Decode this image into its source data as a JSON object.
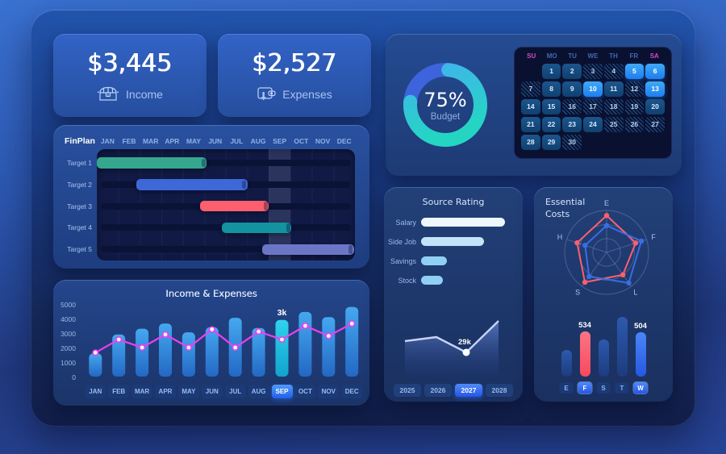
{
  "stats": {
    "income": {
      "value": "$3,445",
      "label": "Income"
    },
    "expenses": {
      "value": "$2,527",
      "label": "Expenses"
    }
  },
  "budget": {
    "percent": 75,
    "percent_label": "75%",
    "caption": "Budget",
    "ring_color_start": "#41b4ec",
    "ring_color_end": "#24d6c2",
    "ring_rest_color": "#3d64dd"
  },
  "calendar": {
    "day_headers": [
      "SU",
      "MO",
      "TU",
      "WE",
      "TH",
      "FR",
      "SA"
    ],
    "start_offset": 1,
    "num_days": 30,
    "active_days": [
      5,
      6,
      10,
      13
    ],
    "hatched_days": [
      3,
      4,
      7,
      12,
      16,
      17,
      18,
      19,
      25,
      26,
      27,
      30
    ]
  },
  "finplan": {
    "title": "FinPlan",
    "months": [
      "JAN",
      "FEB",
      "MAR",
      "APR",
      "MAY",
      "JUN",
      "JUL",
      "AUG",
      "SEP",
      "OCT",
      "NOV",
      "DEC"
    ],
    "highlight_month_index": 8,
    "rows": [
      {
        "label": "Target 1",
        "start": 0,
        "end": 5.1,
        "color": "#35a78e"
      },
      {
        "label": "Target 2",
        "start": 1.85,
        "end": 7.0,
        "color": "#3e68d8"
      },
      {
        "label": "Target 3",
        "start": 4.8,
        "end": 8.0,
        "color": "#fc5f6d"
      },
      {
        "label": "Target 4",
        "start": 5.8,
        "end": 9.05,
        "color": "#12939f"
      },
      {
        "label": "Target 5",
        "start": 7.7,
        "end": 11.95,
        "color": "#6b77c6"
      }
    ]
  },
  "income_expenses": {
    "title": "Income & Expenses",
    "y_ticks": [
      5000,
      4000,
      3000,
      2000,
      1000,
      0
    ],
    "ymax": 5000,
    "months": [
      "JAN",
      "FEB",
      "MAR",
      "APR",
      "MAY",
      "JUN",
      "JUL",
      "AUG",
      "SEP",
      "OCT",
      "NOV",
      "DEC"
    ],
    "highlight_index": 8,
    "bars": [
      1600,
      2900,
      3300,
      3650,
      3050,
      3400,
      4050,
      3350,
      3900,
      4450,
      4100,
      4800
    ],
    "line": [
      1650,
      2550,
      2000,
      2900,
      2000,
      3250,
      2000,
      3100,
      2550,
      3500,
      2800,
      3650
    ],
    "annotation": {
      "text": "3k",
      "index": 8
    },
    "bar_color_top": "#45a8f0",
    "bar_color_bottom": "#2368c4",
    "bar_hl_top": "#2fd2ee",
    "bar_hl_bottom": "#12a3cc",
    "line_color": "#ec3ef2"
  },
  "source_rating": {
    "title": "Source Rating",
    "max_width": 104,
    "bars": [
      {
        "label": "Salary",
        "value": 100,
        "color": "#eef7fe"
      },
      {
        "label": "Side Job",
        "value": 75,
        "color": "#c3e3f9"
      },
      {
        "label": "Savings",
        "value": 31,
        "color": "#8fd0f4"
      },
      {
        "label": "Stock",
        "value": 26,
        "color": "#8fd0f4"
      }
    ],
    "trend": {
      "points_x": [
        2,
        41,
        78,
        118
      ],
      "points_y": [
        33,
        28,
        47,
        8
      ],
      "annotation": {
        "text": "29k",
        "index": 2
      },
      "line_color": "#c8d2f8"
    },
    "years": [
      {
        "label": "2025",
        "active": false
      },
      {
        "label": "2026",
        "active": false
      },
      {
        "label": "2027",
        "active": true
      },
      {
        "label": "2028",
        "active": false
      }
    ]
  },
  "essential_costs": {
    "title_line1": "Essential",
    "title_line2": "Costs",
    "radar": {
      "axes": [
        "E",
        "F",
        "L",
        "S",
        "H"
      ],
      "series": [
        {
          "name": "red",
          "color": "#fc5f6d",
          "values": [
            0.88,
            0.73,
            0.66,
            0.88,
            0.74
          ]
        },
        {
          "name": "blue",
          "color": "#3a6de4",
          "values": [
            0.64,
            0.87,
            0.9,
            0.71,
            0.54
          ]
        }
      ]
    },
    "bars": [
      {
        "label": "E",
        "height": 33,
        "value": "",
        "active": false
      },
      {
        "label": "F",
        "height": 56,
        "value": "534",
        "active": true
      },
      {
        "label": "S",
        "height": 46,
        "value": "",
        "active": false
      },
      {
        "label": "T",
        "height": 74,
        "value": "",
        "active": false
      },
      {
        "label": "W",
        "height": 55,
        "value": "504",
        "active": true
      }
    ],
    "bar_red": "#fc5f6d",
    "bar_blue_bright_top": "#4c86f6",
    "bar_blue_bright_bottom": "#2558e2",
    "bar_dark_top": "#2d59ae",
    "bar_dark_bottom": "#1d3c7e"
  }
}
